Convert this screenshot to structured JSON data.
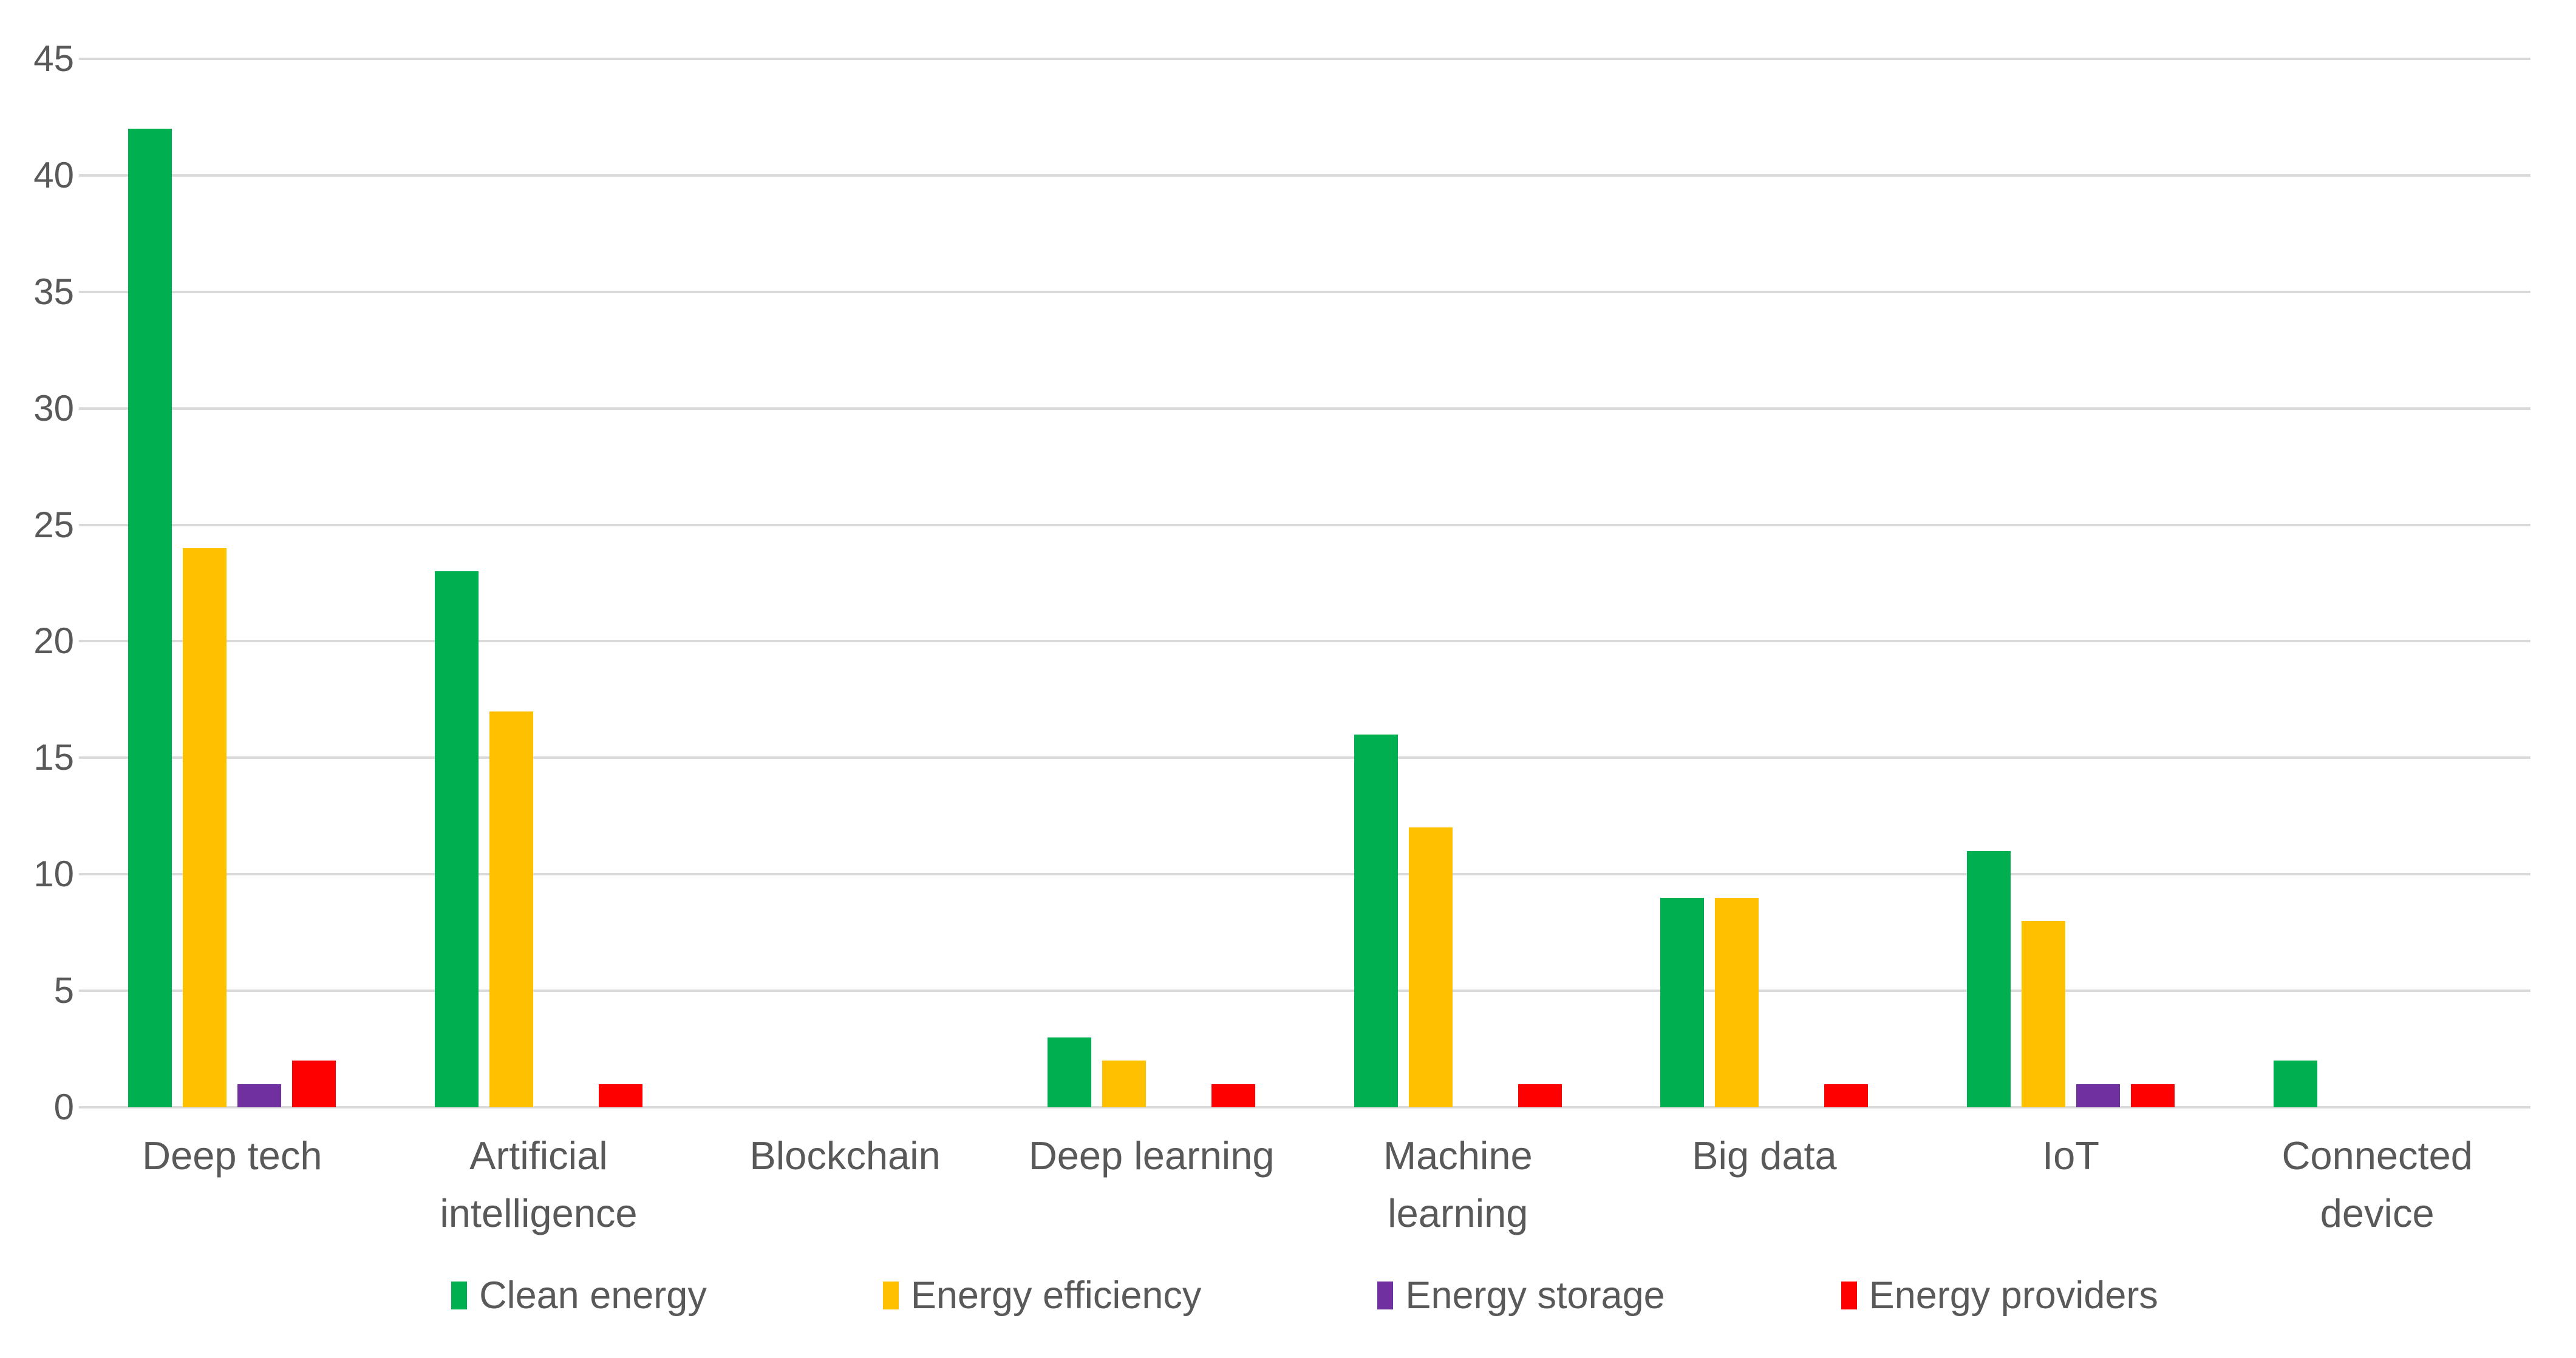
{
  "chart_data": {
    "type": "bar",
    "title": "",
    "xlabel": "",
    "ylabel": "",
    "categories": [
      "Deep tech",
      "Artificial intelligence",
      "Blockchain",
      "Deep learning",
      "Machine learning",
      "Big data",
      "IoT",
      "Connected device"
    ],
    "category_display": [
      "Deep tech",
      "Artificial\nintelligence",
      "Blockchain",
      "Deep learning",
      "Machine\nlearning",
      "Big data",
      "IoT",
      "Connected\ndevice"
    ],
    "series": [
      {
        "name": "Clean energy",
        "color": "#00B050",
        "values": [
          42,
          23,
          0,
          3,
          16,
          9,
          11,
          2
        ]
      },
      {
        "name": "Energy efficiency",
        "color": "#FFC000",
        "values": [
          24,
          17,
          0,
          2,
          12,
          9,
          8,
          0
        ]
      },
      {
        "name": "Energy storage",
        "color": "#7030A0",
        "values": [
          1,
          0,
          0,
          0,
          0,
          0,
          1,
          0
        ]
      },
      {
        "name": "Energy providers",
        "color": "#FF0000",
        "values": [
          2,
          1,
          0,
          1,
          1,
          1,
          1,
          0
        ]
      }
    ],
    "ylim": [
      0,
      45
    ],
    "ytick_step": 5,
    "ytick_labels": [
      "0",
      "5",
      "10",
      "15",
      "20",
      "25",
      "30",
      "35",
      "40",
      "45"
    ],
    "grid": true,
    "legend_position": "bottom"
  },
  "style": {
    "axis_text_color": "#595959",
    "gridline_color": "#D9D9D9",
    "background_color": "#FFFFFF"
  }
}
